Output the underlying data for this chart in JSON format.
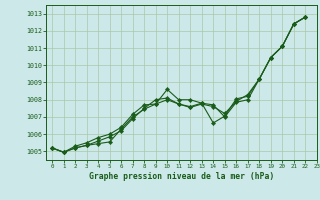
{
  "title": "Graphe pression niveau de la mer (hPa)",
  "bg_color": "#cce8e8",
  "grid_color": "#aac8aa",
  "line_color": "#1a5c1a",
  "xlim": [
    -0.5,
    23
  ],
  "ylim": [
    1004.5,
    1013.5
  ],
  "yticks": [
    1005,
    1006,
    1007,
    1008,
    1009,
    1010,
    1011,
    1012,
    1013
  ],
  "xticks": [
    0,
    1,
    2,
    3,
    4,
    5,
    6,
    7,
    8,
    9,
    10,
    11,
    12,
    13,
    14,
    15,
    16,
    17,
    18,
    19,
    20,
    21,
    22,
    23
  ],
  "series1_x": [
    0,
    1,
    2,
    3,
    4,
    5,
    6,
    7,
    8,
    9,
    10,
    11,
    12,
    13,
    14,
    15,
    16,
    17,
    18,
    19,
    20,
    21,
    22
  ],
  "series1_y": [
    1005.2,
    1004.95,
    1005.2,
    1005.35,
    1005.45,
    1005.55,
    1006.3,
    1007.0,
    1007.45,
    1007.75,
    1008.6,
    1008.0,
    1008.0,
    1007.8,
    1006.65,
    1007.05,
    1008.05,
    1008.2,
    1009.2,
    1010.45,
    1011.1,
    1012.4,
    1012.8
  ],
  "series2_x": [
    0,
    1,
    2,
    3,
    4,
    5,
    6,
    7,
    8,
    9,
    10,
    11,
    12,
    13,
    14,
    15,
    16,
    17,
    18,
    19,
    20,
    21,
    22
  ],
  "series2_y": [
    1005.2,
    1004.95,
    1005.2,
    1005.35,
    1005.6,
    1005.85,
    1006.2,
    1006.9,
    1007.5,
    1008.0,
    1008.1,
    1007.75,
    1007.6,
    1007.8,
    1007.7,
    1007.0,
    1007.85,
    1008.0,
    1009.2,
    1010.45,
    1011.1,
    1012.4,
    1012.8
  ],
  "series3_x": [
    0,
    1,
    2,
    3,
    4,
    5,
    6,
    7,
    8,
    9,
    10,
    11,
    12,
    13,
    14,
    15,
    16,
    17,
    18,
    19,
    20,
    21,
    22
  ],
  "series3_y": [
    1005.2,
    1004.95,
    1005.3,
    1005.5,
    1005.8,
    1006.0,
    1006.4,
    1007.15,
    1007.7,
    1007.75,
    1008.0,
    1007.75,
    1007.55,
    1007.75,
    1007.6,
    1007.2,
    1007.9,
    1008.3,
    1009.2,
    1010.45,
    1011.1,
    1012.4,
    1012.8
  ]
}
